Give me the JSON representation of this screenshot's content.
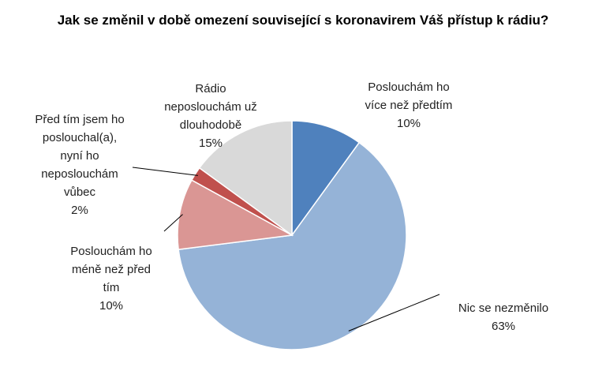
{
  "chart_data": {
    "type": "pie",
    "title": "Jak se změnil v době omezení související s koronavirem Váš přístup k rádiu?",
    "slices": [
      {
        "label": "Poslouchám ho\nvíce než předtím",
        "value": 10,
        "value_label": "10%",
        "color": "#4f81bd"
      },
      {
        "label": "Nic se nezměnilo",
        "value": 63,
        "value_label": "63%",
        "color": "#95b3d7"
      },
      {
        "label": "Poslouchám ho\nméně než před\ntím",
        "value": 10,
        "value_label": "10%",
        "color": "#da9694"
      },
      {
        "label": "Před tím jsem ho\nposlouchal(a),\nnyní ho\nneposlouchám\nvůbec",
        "value": 2,
        "value_label": "2%",
        "color": "#c0504d"
      },
      {
        "label": "Rádio\nneposlouchám už\ndlouhodobě",
        "value": 15,
        "value_label": "15%",
        "color": "#d9d9d9"
      }
    ],
    "start_angle_deg": 0,
    "direction": "clockwise",
    "legend": "none",
    "data_labels": "outside with leader lines"
  }
}
